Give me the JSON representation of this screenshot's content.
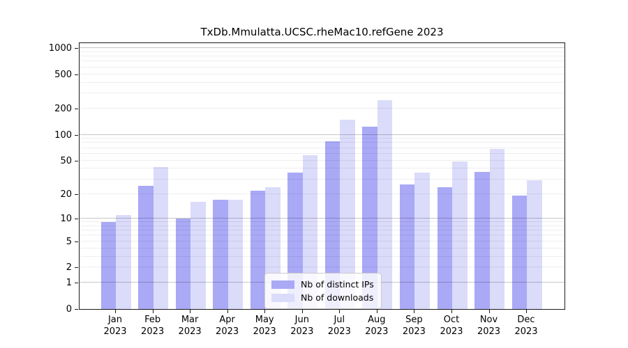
{
  "title": "TxDb.Mmulatta.UCSC.rheMac10.refGene 2023",
  "colors": {
    "ips_bar": "#a9a9f6",
    "downloads_bar": "#dbdbfa",
    "major_gridline": "rgba(0,0,0,0.22)",
    "minor_gridline": "rgba(0,0,0,0.065)",
    "axis": "#1a1a1a"
  },
  "legend": {
    "items": [
      {
        "label": "Nb of distinct IPs",
        "series": "ips"
      },
      {
        "label": "Nb of downloads",
        "series": "downloads"
      }
    ]
  },
  "chart_data": {
    "type": "bar",
    "title": "TxDb.Mmulatta.UCSC.rheMac10.refGene 2023",
    "categories": [
      {
        "month": "Jan",
        "year": "2023"
      },
      {
        "month": "Feb",
        "year": "2023"
      },
      {
        "month": "Mar",
        "year": "2023"
      },
      {
        "month": "Apr",
        "year": "2023"
      },
      {
        "month": "May",
        "year": "2023"
      },
      {
        "month": "Jun",
        "year": "2023"
      },
      {
        "month": "Jul",
        "year": "2023"
      },
      {
        "month": "Aug",
        "year": "2023"
      },
      {
        "month": "Sep",
        "year": "2023"
      },
      {
        "month": "Oct",
        "year": "2023"
      },
      {
        "month": "Nov",
        "year": "2023"
      },
      {
        "month": "Dec",
        "year": "2023"
      }
    ],
    "series": [
      {
        "name": "Nb of distinct IPs",
        "values": [
          9,
          25,
          10,
          17,
          22,
          36,
          84,
          125,
          26,
          24,
          37,
          19
        ]
      },
      {
        "name": "Nb of downloads",
        "values": [
          11,
          42,
          16,
          17,
          24,
          58,
          150,
          250,
          36,
          49,
          68,
          29
        ]
      }
    ],
    "xlabel": "",
    "ylabel": "",
    "y_ticks": [
      0,
      1,
      2,
      5,
      10,
      20,
      50,
      100,
      200,
      500,
      1000
    ],
    "y_scale": "log10(1+x)",
    "ylim": [
      0,
      1300
    ],
    "grid": true,
    "legend_position": "lower center"
  }
}
